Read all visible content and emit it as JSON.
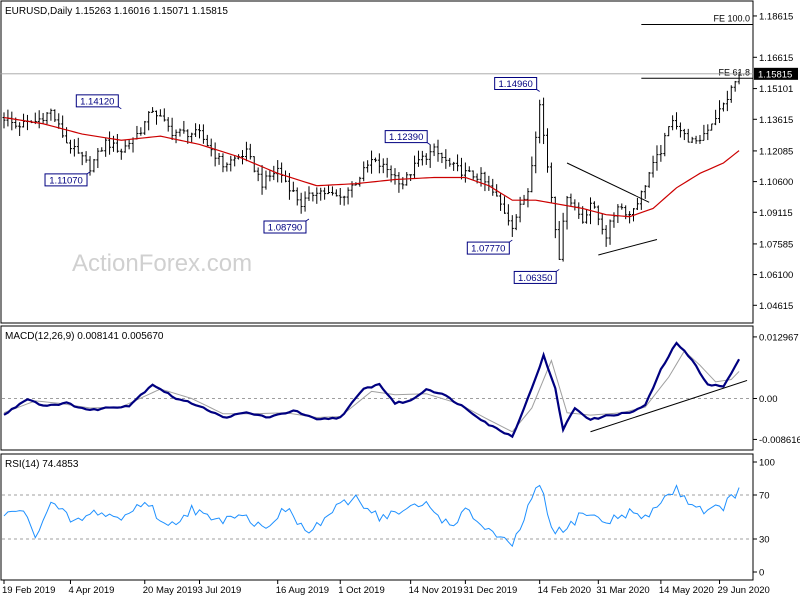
{
  "chart_data": [
    {
      "type": "candlestick",
      "panel": "price",
      "header": "EURUSD,Daily  1.15263 1.16016 1.15071 1.15815",
      "watermark": "ActionForex.com",
      "y_ticks": [
        "1.18615",
        "1.16615",
        "1.15101",
        "1.13615",
        "1.12085",
        "1.10600",
        "1.09115",
        "1.07585",
        "1.06100",
        "1.04615"
      ],
      "ylim": [
        1.04,
        1.19
      ],
      "current_price": "1.15815",
      "moving_average": true,
      "colors": {
        "bars": "#000000",
        "ma": "#cc0000",
        "labels": "#000080",
        "trend": "#000000"
      },
      "fib_levels": [
        {
          "label": "FE 100.0",
          "value": 1.182
        },
        {
          "label": "FE 61.8",
          "value": 1.156
        }
      ],
      "annotations": [
        {
          "label": "1.14120",
          "value": 1.1412,
          "bar": 30
        },
        {
          "label": "1.11070",
          "value": 1.1107,
          "bar": 22
        },
        {
          "label": "1.08790",
          "value": 1.0879,
          "bar": 78
        },
        {
          "label": "1.12390",
          "value": 1.1239,
          "bar": 109
        },
        {
          "label": "1.07770",
          "value": 1.0777,
          "bar": 130
        },
        {
          "label": "1.14960",
          "value": 1.1496,
          "bar": 137
        },
        {
          "label": "1.06350",
          "value": 1.0635,
          "bar": 142
        }
      ],
      "triangle": {
        "top": [
          [
            144,
            1.115
          ],
          [
            165,
            1.096
          ]
        ],
        "bottom": [
          [
            152,
            1.0705
          ],
          [
            167,
            1.078
          ]
        ]
      },
      "series": {
        "close_anchors": [
          [
            0,
            1.137
          ],
          [
            3,
            1.133
          ],
          [
            8,
            1.135
          ],
          [
            12,
            1.14
          ],
          [
            16,
            1.125
          ],
          [
            22,
            1.113
          ],
          [
            26,
            1.125
          ],
          [
            30,
            1.121
          ],
          [
            35,
            1.131
          ],
          [
            38,
            1.141
          ],
          [
            43,
            1.13
          ],
          [
            50,
            1.129
          ],
          [
            56,
            1.114
          ],
          [
            62,
            1.12
          ],
          [
            66,
            1.105
          ],
          [
            70,
            1.112
          ],
          [
            76,
            1.095
          ],
          [
            80,
            1.102
          ],
          [
            86,
            1.098
          ],
          [
            90,
            1.106
          ],
          [
            94,
            1.116
          ],
          [
            98,
            1.112
          ],
          [
            102,
            1.105
          ],
          [
            106,
            1.116
          ],
          [
            110,
            1.121
          ],
          [
            114,
            1.114
          ],
          [
            118,
            1.11
          ],
          [
            122,
            1.108
          ],
          [
            126,
            1.098
          ],
          [
            130,
            1.085
          ],
          [
            134,
            1.102
          ],
          [
            137,
            1.143
          ],
          [
            140,
            1.099
          ],
          [
            142,
            1.07
          ],
          [
            144,
            1.1
          ],
          [
            148,
            1.087
          ],
          [
            150,
            1.096
          ],
          [
            154,
            1.08
          ],
          [
            157,
            1.095
          ],
          [
            160,
            1.09
          ],
          [
            163,
            1.1
          ],
          [
            165,
            1.11
          ],
          [
            168,
            1.121
          ],
          [
            171,
            1.137
          ],
          [
            174,
            1.128
          ],
          [
            177,
            1.124
          ],
          [
            180,
            1.132
          ],
          [
            184,
            1.143
          ],
          [
            188,
            1.158
          ]
        ],
        "ma_anchors": [
          [
            0,
            1.137
          ],
          [
            10,
            1.134
          ],
          [
            20,
            1.129
          ],
          [
            30,
            1.126
          ],
          [
            40,
            1.128
          ],
          [
            50,
            1.124
          ],
          [
            60,
            1.118
          ],
          [
            70,
            1.11
          ],
          [
            80,
            1.104
          ],
          [
            90,
            1.105
          ],
          [
            100,
            1.107
          ],
          [
            110,
            1.108
          ],
          [
            118,
            1.108
          ],
          [
            124,
            1.104
          ],
          [
            130,
            1.097
          ],
          [
            136,
            1.097
          ],
          [
            142,
            1.095
          ],
          [
            148,
            1.093
          ],
          [
            154,
            1.09
          ],
          [
            160,
            1.089
          ],
          [
            166,
            1.093
          ],
          [
            172,
            1.103
          ],
          [
            178,
            1.11
          ],
          [
            184,
            1.115
          ],
          [
            188,
            1.121
          ]
        ]
      }
    },
    {
      "type": "line",
      "panel": "macd",
      "header": "MACD(12,26,9) 0.008141 0.005670",
      "y_ticks": [
        "0.012967",
        "0.00",
        "-0.008616"
      ],
      "ylim": [
        -0.01,
        0.014
      ],
      "colors": {
        "macd": "#000080",
        "signal": "#a0a0a0",
        "trend": "#000000"
      },
      "trendline": [
        [
          150,
          -0.007
        ],
        [
          188,
          0.0038
        ]
      ],
      "macd_anchors": [
        [
          0,
          -0.0035
        ],
        [
          6,
          0.0
        ],
        [
          10,
          -0.0015
        ],
        [
          16,
          -0.001
        ],
        [
          22,
          -0.0025
        ],
        [
          26,
          -0.002
        ],
        [
          32,
          -0.0015
        ],
        [
          38,
          0.003
        ],
        [
          44,
          0.0
        ],
        [
          50,
          -0.0015
        ],
        [
          56,
          -0.004
        ],
        [
          62,
          -0.003
        ],
        [
          68,
          -0.004
        ],
        [
          74,
          -0.0025
        ],
        [
          80,
          -0.0045
        ],
        [
          86,
          -0.004
        ],
        [
          92,
          0.002
        ],
        [
          96,
          0.003
        ],
        [
          100,
          -0.001
        ],
        [
          104,
          -0.0005
        ],
        [
          108,
          0.002
        ],
        [
          112,
          0.001
        ],
        [
          118,
          -0.002
        ],
        [
          124,
          -0.0055
        ],
        [
          130,
          -0.008
        ],
        [
          134,
          0.0
        ],
        [
          138,
          0.009
        ],
        [
          141,
          0.002
        ],
        [
          143,
          -0.0065
        ],
        [
          146,
          -0.002
        ],
        [
          150,
          -0.0045
        ],
        [
          155,
          -0.0035
        ],
        [
          160,
          -0.003
        ],
        [
          164,
          -0.0015
        ],
        [
          168,
          0.006
        ],
        [
          172,
          0.0118
        ],
        [
          176,
          0.008
        ],
        [
          180,
          0.003
        ],
        [
          184,
          0.0025
        ],
        [
          188,
          0.0081
        ]
      ],
      "signal_anchors": [
        [
          0,
          -0.003
        ],
        [
          8,
          -0.0005
        ],
        [
          14,
          -0.001
        ],
        [
          22,
          -0.002
        ],
        [
          30,
          -0.0018
        ],
        [
          40,
          0.002
        ],
        [
          48,
          0.0
        ],
        [
          56,
          -0.0032
        ],
        [
          64,
          -0.0032
        ],
        [
          72,
          -0.003
        ],
        [
          80,
          -0.004
        ],
        [
          86,
          -0.0038
        ],
        [
          94,
          0.0015
        ],
        [
          100,
          0.0008
        ],
        [
          108,
          0.001
        ],
        [
          116,
          -0.001
        ],
        [
          124,
          -0.0045
        ],
        [
          130,
          -0.007
        ],
        [
          135,
          -0.002
        ],
        [
          140,
          0.008
        ],
        [
          144,
          -0.003
        ],
        [
          150,
          -0.0035
        ],
        [
          158,
          -0.003
        ],
        [
          164,
          -0.0018
        ],
        [
          170,
          0.0045
        ],
        [
          174,
          0.01
        ],
        [
          178,
          0.007
        ],
        [
          182,
          0.0035
        ],
        [
          186,
          0.004
        ],
        [
          188,
          0.0057
        ]
      ]
    },
    {
      "type": "line",
      "panel": "rsi",
      "header": "RSI(14) 74.4853",
      "y_ticks": [
        "100",
        "70",
        "30",
        "0"
      ],
      "ylim": [
        0,
        100
      ],
      "levels": [
        70,
        30
      ],
      "colors": {
        "rsi": "#1e90ff"
      },
      "rsi_anchors": [
        [
          0,
          50
        ],
        [
          4,
          58
        ],
        [
          8,
          35
        ],
        [
          12,
          62
        ],
        [
          18,
          45
        ],
        [
          24,
          55
        ],
        [
          30,
          48
        ],
        [
          36,
          65
        ],
        [
          42,
          40
        ],
        [
          48,
          58
        ],
        [
          54,
          45
        ],
        [
          60,
          55
        ],
        [
          66,
          40
        ],
        [
          72,
          57
        ],
        [
          78,
          35
        ],
        [
          84,
          55
        ],
        [
          90,
          68
        ],
        [
          96,
          50
        ],
        [
          102,
          55
        ],
        [
          108,
          62
        ],
        [
          114,
          42
        ],
        [
          118,
          55
        ],
        [
          124,
          38
        ],
        [
          130,
          22
        ],
        [
          134,
          58
        ],
        [
          137,
          80
        ],
        [
          140,
          40
        ],
        [
          143,
          35
        ],
        [
          148,
          55
        ],
        [
          154,
          45
        ],
        [
          160,
          55
        ],
        [
          164,
          48
        ],
        [
          168,
          65
        ],
        [
          172,
          75
        ],
        [
          176,
          62
        ],
        [
          180,
          55
        ],
        [
          184,
          60
        ],
        [
          188,
          74.5
        ]
      ]
    }
  ],
  "x_axis": {
    "labels": [
      {
        "text": "19 Feb 2019",
        "bar": 0
      },
      {
        "text": "4 Apr 2019",
        "bar": 17
      },
      {
        "text": "20 May 2019",
        "bar": 36
      },
      {
        "text": "3 Jul 2019",
        "bar": 50
      },
      {
        "text": "16 Aug 2019",
        "bar": 70
      },
      {
        "text": "1 Oct 2019",
        "bar": 86
      },
      {
        "text": "14 Nov 2019",
        "bar": 104
      },
      {
        "text": "31 Dec 2019",
        "bar": 118
      },
      {
        "text": "14 Feb 2020",
        "bar": 137
      },
      {
        "text": "31 Mar 2020",
        "bar": 152
      },
      {
        "text": "14 May 2020",
        "bar": 168
      },
      {
        "text": "29 Jun 2020",
        "bar": 183
      }
    ]
  }
}
